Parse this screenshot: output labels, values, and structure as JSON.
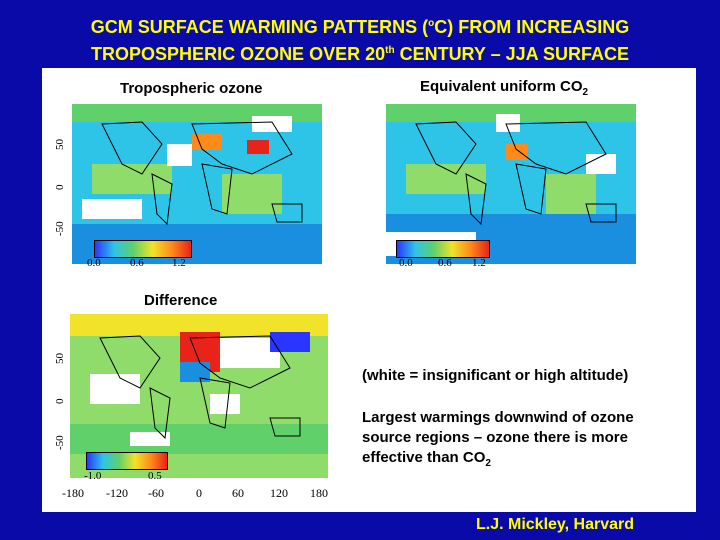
{
  "title": {
    "line1_a": "GCM SURFACE WARMING PATTERNS (",
    "line1_sup": "o",
    "line1_b": "C) FROM INCREASING",
    "line2_a": "TROPOSPHERIC OZONE OVER 20",
    "line2_sup": "th",
    "line2_b": " CENTURY – JJA SURFACE"
  },
  "panels": {
    "ozone": {
      "label": "Tropospheric ozone",
      "scale": [
        "0.0",
        "0.6",
        "1.2"
      ]
    },
    "co2": {
      "label_main": "Equivalent uniform CO",
      "label_sub": "2",
      "scale": [
        "0.0",
        "0.6",
        "1.2"
      ]
    },
    "difference": {
      "label": "Difference",
      "scale": [
        "-1.0",
        "0.5"
      ]
    }
  },
  "axes": {
    "lat_ticks": [
      "50",
      "0",
      "-50"
    ],
    "lon_ticks": [
      "-180",
      "-120",
      "-60",
      "0",
      "60",
      "120",
      "180"
    ]
  },
  "notes": {
    "white_note": "(white = insignificant or high altitude)",
    "largest_1": "Largest warmings downwind of ozone",
    "largest_2": "source regions – ozone there is more",
    "largest_3_main": "effective than CO",
    "largest_3_sub": "2"
  },
  "credit": "L.J. Mickley, Harvard",
  "colors": {
    "background": "#0a0aa8",
    "title": "#ffff00",
    "panel": "#ffffff",
    "ocean": "#2ec4e8"
  }
}
